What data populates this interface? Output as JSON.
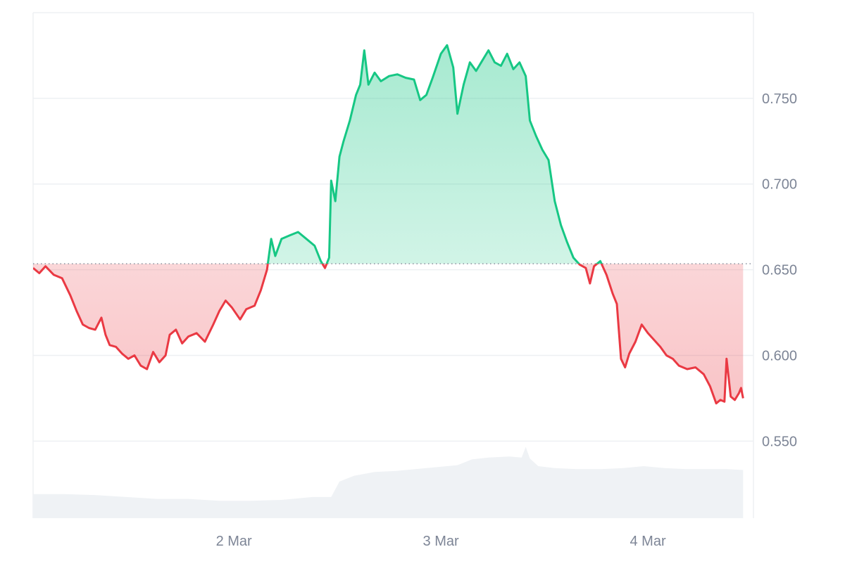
{
  "chart_data": {
    "type": "line",
    "baseline": 0.6535,
    "ylim": [
      0.505,
      0.8
    ],
    "yticks": [
      "0.550",
      "0.600",
      "0.650",
      "0.700",
      "0.750"
    ],
    "xticks": [
      "2 Mar",
      "3 Mar",
      "4 Mar"
    ],
    "x_range_days": [
      0,
      3.48
    ],
    "xtick_positions_days": [
      0.97,
      1.97,
      2.97
    ],
    "grid": true,
    "colors": {
      "above": "#16c784",
      "below": "#ea3943",
      "above_fill": "#16c784",
      "below_fill": "#ea3943",
      "volume": "#eff2f5",
      "grid": "#eef0f3",
      "baseline": "#8a919e"
    },
    "price_series": {
      "name": "",
      "points": [
        [
          0.0,
          0.651
        ],
        [
          0.03,
          0.648
        ],
        [
          0.06,
          0.652
        ],
        [
          0.1,
          0.647
        ],
        [
          0.14,
          0.645
        ],
        [
          0.18,
          0.635
        ],
        [
          0.21,
          0.626
        ],
        [
          0.24,
          0.618
        ],
        [
          0.27,
          0.616
        ],
        [
          0.3,
          0.615
        ],
        [
          0.33,
          0.622
        ],
        [
          0.35,
          0.612
        ],
        [
          0.37,
          0.606
        ],
        [
          0.4,
          0.605
        ],
        [
          0.43,
          0.601
        ],
        [
          0.46,
          0.598
        ],
        [
          0.49,
          0.6
        ],
        [
          0.52,
          0.594
        ],
        [
          0.55,
          0.592
        ],
        [
          0.58,
          0.602
        ],
        [
          0.61,
          0.596
        ],
        [
          0.64,
          0.6
        ],
        [
          0.66,
          0.612
        ],
        [
          0.69,
          0.615
        ],
        [
          0.72,
          0.607
        ],
        [
          0.75,
          0.611
        ],
        [
          0.79,
          0.613
        ],
        [
          0.83,
          0.608
        ],
        [
          0.87,
          0.618
        ],
        [
          0.9,
          0.626
        ],
        [
          0.93,
          0.632
        ],
        [
          0.96,
          0.628
        ],
        [
          1.0,
          0.621
        ],
        [
          1.03,
          0.627
        ],
        [
          1.07,
          0.629
        ],
        [
          1.1,
          0.638
        ],
        [
          1.13,
          0.65
        ],
        [
          1.15,
          0.668
        ],
        [
          1.17,
          0.658
        ],
        [
          1.2,
          0.668
        ],
        [
          1.24,
          0.67
        ],
        [
          1.28,
          0.672
        ],
        [
          1.32,
          0.668
        ],
        [
          1.36,
          0.664
        ],
        [
          1.39,
          0.655
        ],
        [
          1.41,
          0.651
        ],
        [
          1.43,
          0.657
        ],
        [
          1.44,
          0.702
        ],
        [
          1.46,
          0.69
        ],
        [
          1.48,
          0.716
        ],
        [
          1.5,
          0.725
        ],
        [
          1.53,
          0.737
        ],
        [
          1.56,
          0.752
        ],
        [
          1.58,
          0.758
        ],
        [
          1.6,
          0.778
        ],
        [
          1.62,
          0.758
        ],
        [
          1.65,
          0.765
        ],
        [
          1.68,
          0.76
        ],
        [
          1.72,
          0.763
        ],
        [
          1.76,
          0.764
        ],
        [
          1.8,
          0.762
        ],
        [
          1.84,
          0.761
        ],
        [
          1.87,
          0.749
        ],
        [
          1.9,
          0.752
        ],
        [
          1.93,
          0.762
        ],
        [
          1.97,
          0.776
        ],
        [
          2.0,
          0.781
        ],
        [
          2.03,
          0.768
        ],
        [
          2.05,
          0.741
        ],
        [
          2.08,
          0.758
        ],
        [
          2.11,
          0.771
        ],
        [
          2.14,
          0.766
        ],
        [
          2.17,
          0.772
        ],
        [
          2.2,
          0.778
        ],
        [
          2.23,
          0.771
        ],
        [
          2.26,
          0.769
        ],
        [
          2.29,
          0.776
        ],
        [
          2.32,
          0.767
        ],
        [
          2.35,
          0.771
        ],
        [
          2.38,
          0.763
        ],
        [
          2.4,
          0.737
        ],
        [
          2.43,
          0.728
        ],
        [
          2.46,
          0.72
        ],
        [
          2.49,
          0.714
        ],
        [
          2.52,
          0.69
        ],
        [
          2.55,
          0.676
        ],
        [
          2.58,
          0.666
        ],
        [
          2.61,
          0.657
        ],
        [
          2.64,
          0.653
        ],
        [
          2.67,
          0.651
        ],
        [
          2.69,
          0.642
        ],
        [
          2.71,
          0.652
        ],
        [
          2.74,
          0.655
        ],
        [
          2.77,
          0.647
        ],
        [
          2.8,
          0.636
        ],
        [
          2.82,
          0.63
        ],
        [
          2.84,
          0.598
        ],
        [
          2.86,
          0.593
        ],
        [
          2.88,
          0.601
        ],
        [
          2.91,
          0.608
        ],
        [
          2.94,
          0.618
        ],
        [
          2.97,
          0.613
        ],
        [
          3.0,
          0.609
        ],
        [
          3.03,
          0.605
        ],
        [
          3.06,
          0.6
        ],
        [
          3.09,
          0.598
        ],
        [
          3.12,
          0.594
        ],
        [
          3.16,
          0.592
        ],
        [
          3.2,
          0.593
        ],
        [
          3.24,
          0.589
        ],
        [
          3.27,
          0.582
        ],
        [
          3.3,
          0.572
        ],
        [
          3.32,
          0.574
        ],
        [
          3.34,
          0.573
        ],
        [
          3.35,
          0.598
        ],
        [
          3.37,
          0.576
        ],
        [
          3.39,
          0.574
        ],
        [
          3.41,
          0.578
        ],
        [
          3.42,
          0.581
        ],
        [
          3.43,
          0.575
        ]
      ]
    },
    "volume_series": {
      "name": "",
      "points": [
        [
          0.0,
          0.25
        ],
        [
          0.15,
          0.25
        ],
        [
          0.3,
          0.24
        ],
        [
          0.45,
          0.22
        ],
        [
          0.6,
          0.2
        ],
        [
          0.75,
          0.2
        ],
        [
          0.9,
          0.18
        ],
        [
          1.05,
          0.18
        ],
        [
          1.2,
          0.19
        ],
        [
          1.35,
          0.22
        ],
        [
          1.44,
          0.22
        ],
        [
          1.48,
          0.38
        ],
        [
          1.55,
          0.44
        ],
        [
          1.65,
          0.48
        ],
        [
          1.75,
          0.49
        ],
        [
          1.85,
          0.51
        ],
        [
          1.95,
          0.53
        ],
        [
          2.05,
          0.55
        ],
        [
          2.12,
          0.61
        ],
        [
          2.2,
          0.63
        ],
        [
          2.3,
          0.64
        ],
        [
          2.36,
          0.63
        ],
        [
          2.38,
          0.74
        ],
        [
          2.4,
          0.62
        ],
        [
          2.44,
          0.54
        ],
        [
          2.52,
          0.52
        ],
        [
          2.62,
          0.51
        ],
        [
          2.75,
          0.51
        ],
        [
          2.85,
          0.52
        ],
        [
          2.95,
          0.54
        ],
        [
          3.05,
          0.52
        ],
        [
          3.15,
          0.51
        ],
        [
          3.25,
          0.51
        ],
        [
          3.35,
          0.51
        ],
        [
          3.43,
          0.5
        ]
      ]
    }
  }
}
